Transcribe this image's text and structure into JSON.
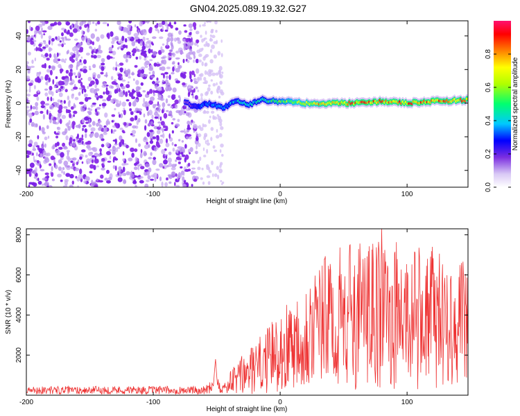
{
  "title": "GN04.2025.089.19.32.G27",
  "chart_data": [
    {
      "type": "heatmap",
      "xlabel": "Height of straight line (km)",
      "ylabel": "Frequency (Hz)",
      "xlim": [
        -200,
        148
      ],
      "ylim": [
        -50,
        49
      ],
      "xticks": [
        -200,
        -100,
        0,
        100
      ],
      "yticks": [
        -40,
        -20,
        0,
        20,
        40
      ],
      "colorbar": {
        "label": "Normalized spectral amplitude",
        "range": [
          0,
          1
        ],
        "ticks": [
          0.0,
          0.2,
          0.4,
          0.6,
          0.8
        ]
      },
      "noise_region": {
        "x_from": -200,
        "x_to": -65,
        "tail_to": -45
      },
      "signal_track": [
        {
          "x": -75,
          "freq": 0,
          "amp": 0.15
        },
        {
          "x": -65,
          "freq": -2,
          "amp": 0.35
        },
        {
          "x": -55,
          "freq": 0,
          "amp": 0.35
        },
        {
          "x": -45,
          "freq": -3,
          "amp": 0.4
        },
        {
          "x": -35,
          "freq": 1,
          "amp": 0.45
        },
        {
          "x": -25,
          "freq": -1,
          "amp": 0.45
        },
        {
          "x": -15,
          "freq": 2,
          "amp": 0.5
        },
        {
          "x": 0,
          "freq": 1,
          "amp": 0.6
        },
        {
          "x": 20,
          "freq": 0,
          "amp": 0.75
        },
        {
          "x": 40,
          "freq": 0,
          "amp": 0.85
        },
        {
          "x": 60,
          "freq": 0,
          "amp": 0.9
        },
        {
          "x": 80,
          "freq": 1,
          "amp": 0.9
        },
        {
          "x": 100,
          "freq": 0,
          "amp": 0.88
        },
        {
          "x": 120,
          "freq": 1,
          "amp": 0.9
        },
        {
          "x": 148,
          "freq": 2,
          "amp": 0.85
        }
      ]
    },
    {
      "type": "line",
      "xlabel": "Height of straight line (km)",
      "ylabel": "SNR (10 * v/v)",
      "xlim": [
        -200,
        148
      ],
      "ylim": [
        0,
        8300
      ],
      "xticks": [
        -200,
        -100,
        0,
        100
      ],
      "yticks": [
        2000,
        4000,
        6000,
        8000
      ],
      "color": "#ee3333",
      "envelope": [
        {
          "x": -200,
          "mean": 250,
          "spread": 200
        },
        {
          "x": -60,
          "mean": 250,
          "spread": 200
        },
        {
          "x": -50,
          "mean": 600,
          "spread": 500
        },
        {
          "x": -45,
          "mean": 300,
          "spread": 200
        },
        {
          "x": -35,
          "mean": 800,
          "spread": 900
        },
        {
          "x": -20,
          "mean": 1300,
          "spread": 1300
        },
        {
          "x": 0,
          "mean": 2200,
          "spread": 2000
        },
        {
          "x": 20,
          "mean": 3200,
          "spread": 2800
        },
        {
          "x": 40,
          "mean": 3800,
          "spread": 3500
        },
        {
          "x": 80,
          "mean": 4000,
          "spread": 3800
        },
        {
          "x": 120,
          "mean": 3800,
          "spread": 3500
        },
        {
          "x": 148,
          "mean": 3600,
          "spread": 3000
        }
      ],
      "peaks": [
        {
          "x": -51,
          "y": 1800
        },
        {
          "x": 35,
          "y": 6800
        },
        {
          "x": 55,
          "y": 7500
        },
        {
          "x": 80,
          "y": 8300
        },
        {
          "x": 120,
          "y": 7400
        },
        {
          "x": 143,
          "y": 6600
        }
      ]
    }
  ]
}
